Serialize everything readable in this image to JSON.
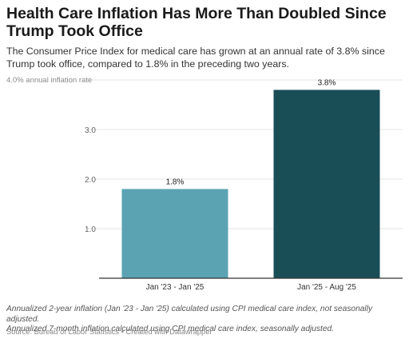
{
  "title": "Health Care Inflation Has More Than Doubled Since Trump Took Office",
  "subtitle": "The Consumer Price Index for medical care has grown at an annual rate of 3.8% since Trump took office, compared to 1.8% in the preceding two years.",
  "notes": [
    "Annualized 2-year inflation (Jan '23 - Jan '25) calculated using CPI medical care index, not seasonally adjusted.",
    "Annualized 7-month inflation calculated using CPI medical care index, seasonally adjusted."
  ],
  "source": "Source: Bureau of Labor Statistics • Created with Datawrapper",
  "colors": {
    "bar1": "#5ba3b3",
    "bar2": "#1a4e57",
    "grid": "#e6e6e6",
    "axis": "#333333"
  },
  "chart_data": {
    "type": "bar",
    "categories": [
      "Jan '23 - Jan '25",
      "Jan '25 - Aug '25"
    ],
    "values": [
      1.8,
      3.8
    ],
    "value_labels": [
      "1.8%",
      "3.8%"
    ],
    "ylabel": "",
    "yticks": [
      1.0,
      2.0,
      3.0
    ],
    "ytick_labels": [
      "1.0",
      "2.0",
      "3.0"
    ],
    "top_tick_label": "4.0% annual inflation rate",
    "ylim": [
      0,
      4.0
    ],
    "grid": true
  }
}
